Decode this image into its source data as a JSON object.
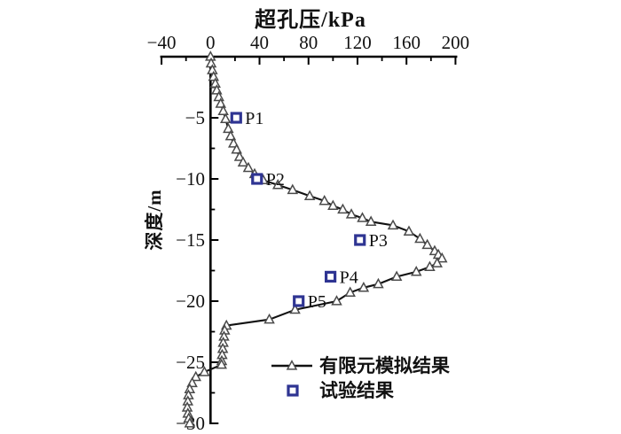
{
  "title": "超孔压/kPa",
  "axes": {
    "x": {
      "label": "超孔压/kPa",
      "min": -40,
      "max": 200,
      "major_ticks": [
        -40,
        0,
        40,
        80,
        120,
        160,
        200
      ],
      "major_tick_labels": [
        "−40",
        "0",
        "40",
        "80",
        "120",
        "160",
        "200"
      ],
      "minor_ticks": [
        -20,
        20,
        60,
        100,
        140,
        180
      ]
    },
    "y": {
      "label": "深度/m",
      "min": -30,
      "max": 0,
      "major_ticks": [
        -5,
        -10,
        -15,
        -20,
        -25,
        -30
      ],
      "major_tick_labels": [
        "−5",
        "−10",
        "−15",
        "−20",
        "−25",
        "−30"
      ],
      "minor_ticks": [
        -2.5,
        -7.5,
        -12.5,
        -17.5,
        -22.5,
        -27.5
      ]
    }
  },
  "colors": {
    "axis": "#000000",
    "curve_line": "#111111",
    "triangle_stroke": "#4a4a4a",
    "triangle_fill": "#ffffff",
    "square_stroke": "#2e3492",
    "text": "#111111"
  },
  "chart_data": {
    "type": "line",
    "title": "超孔压/kPa",
    "xlabel": "超孔压/kPa",
    "ylabel": "深度/m",
    "xlim": [
      -40,
      200
    ],
    "ylim": [
      -30,
      0
    ],
    "grid": false,
    "legend_position": "inside-bottom-right",
    "series": [
      {
        "name": "有限元模拟结果",
        "marker": "triangle",
        "points": [
          [
            0,
            0
          ],
          [
            0.5,
            -0.55
          ],
          [
            1.5,
            -1.1
          ],
          [
            2.5,
            -1.65
          ],
          [
            3.9,
            -2.2
          ],
          [
            5.1,
            -2.75
          ],
          [
            6.8,
            -3.3
          ],
          [
            8.3,
            -3.85
          ],
          [
            10.4,
            -4.45
          ],
          [
            12.3,
            -5.1
          ],
          [
            14.5,
            -5.9
          ],
          [
            16.4,
            -6.5
          ],
          [
            18.8,
            -7.1
          ],
          [
            21.3,
            -7.6
          ],
          [
            23.7,
            -8.2
          ],
          [
            26.6,
            -8.65
          ],
          [
            30.9,
            -9.1
          ],
          [
            36,
            -9.6
          ],
          [
            43,
            -10.1
          ],
          [
            55,
            -10.5
          ],
          [
            67,
            -10.9
          ],
          [
            81,
            -11.4
          ],
          [
            93,
            -11.8
          ],
          [
            100,
            -12.2
          ],
          [
            108,
            -12.5
          ],
          [
            115,
            -12.9
          ],
          [
            124,
            -13.2
          ],
          [
            131,
            -13.5
          ],
          [
            149,
            -13.8
          ],
          [
            162,
            -14.3
          ],
          [
            171,
            -14.9
          ],
          [
            177,
            -15.4
          ],
          [
            183,
            -15.9
          ],
          [
            186,
            -16.2
          ],
          [
            189,
            -16.5
          ],
          [
            185,
            -16.9
          ],
          [
            179,
            -17.2
          ],
          [
            168,
            -17.6
          ],
          [
            152,
            -18
          ],
          [
            137,
            -18.6
          ],
          [
            125,
            -18.9
          ],
          [
            114,
            -19.3
          ],
          [
            103,
            -20
          ],
          [
            69,
            -20.7
          ],
          [
            48,
            -21.5
          ],
          [
            13,
            -22
          ],
          [
            11.6,
            -22.4
          ],
          [
            11,
            -22.9
          ],
          [
            10.4,
            -23.4
          ],
          [
            10,
            -23.9
          ],
          [
            9.5,
            -24.4
          ],
          [
            9.2,
            -24.9
          ],
          [
            9,
            -25.2
          ],
          [
            -5,
            -25.8
          ],
          [
            -12,
            -26.2
          ],
          [
            -15,
            -26.7
          ],
          [
            -17,
            -27.2
          ],
          [
            -18,
            -27.7
          ],
          [
            -18.5,
            -28.2
          ],
          [
            -19,
            -28.7
          ],
          [
            -18.5,
            -29.2
          ],
          [
            -17.8,
            -29.6
          ],
          [
            -17,
            -30
          ]
        ]
      },
      {
        "name": "试验结果",
        "marker": "square",
        "points": [
          [
            21,
            -5
          ],
          [
            38,
            -10
          ],
          [
            122,
            -15
          ],
          [
            98,
            -18
          ],
          [
            72,
            -20
          ]
        ],
        "point_labels": [
          "P1",
          "P2",
          "P3",
          "P4",
          "P5"
        ]
      }
    ]
  }
}
